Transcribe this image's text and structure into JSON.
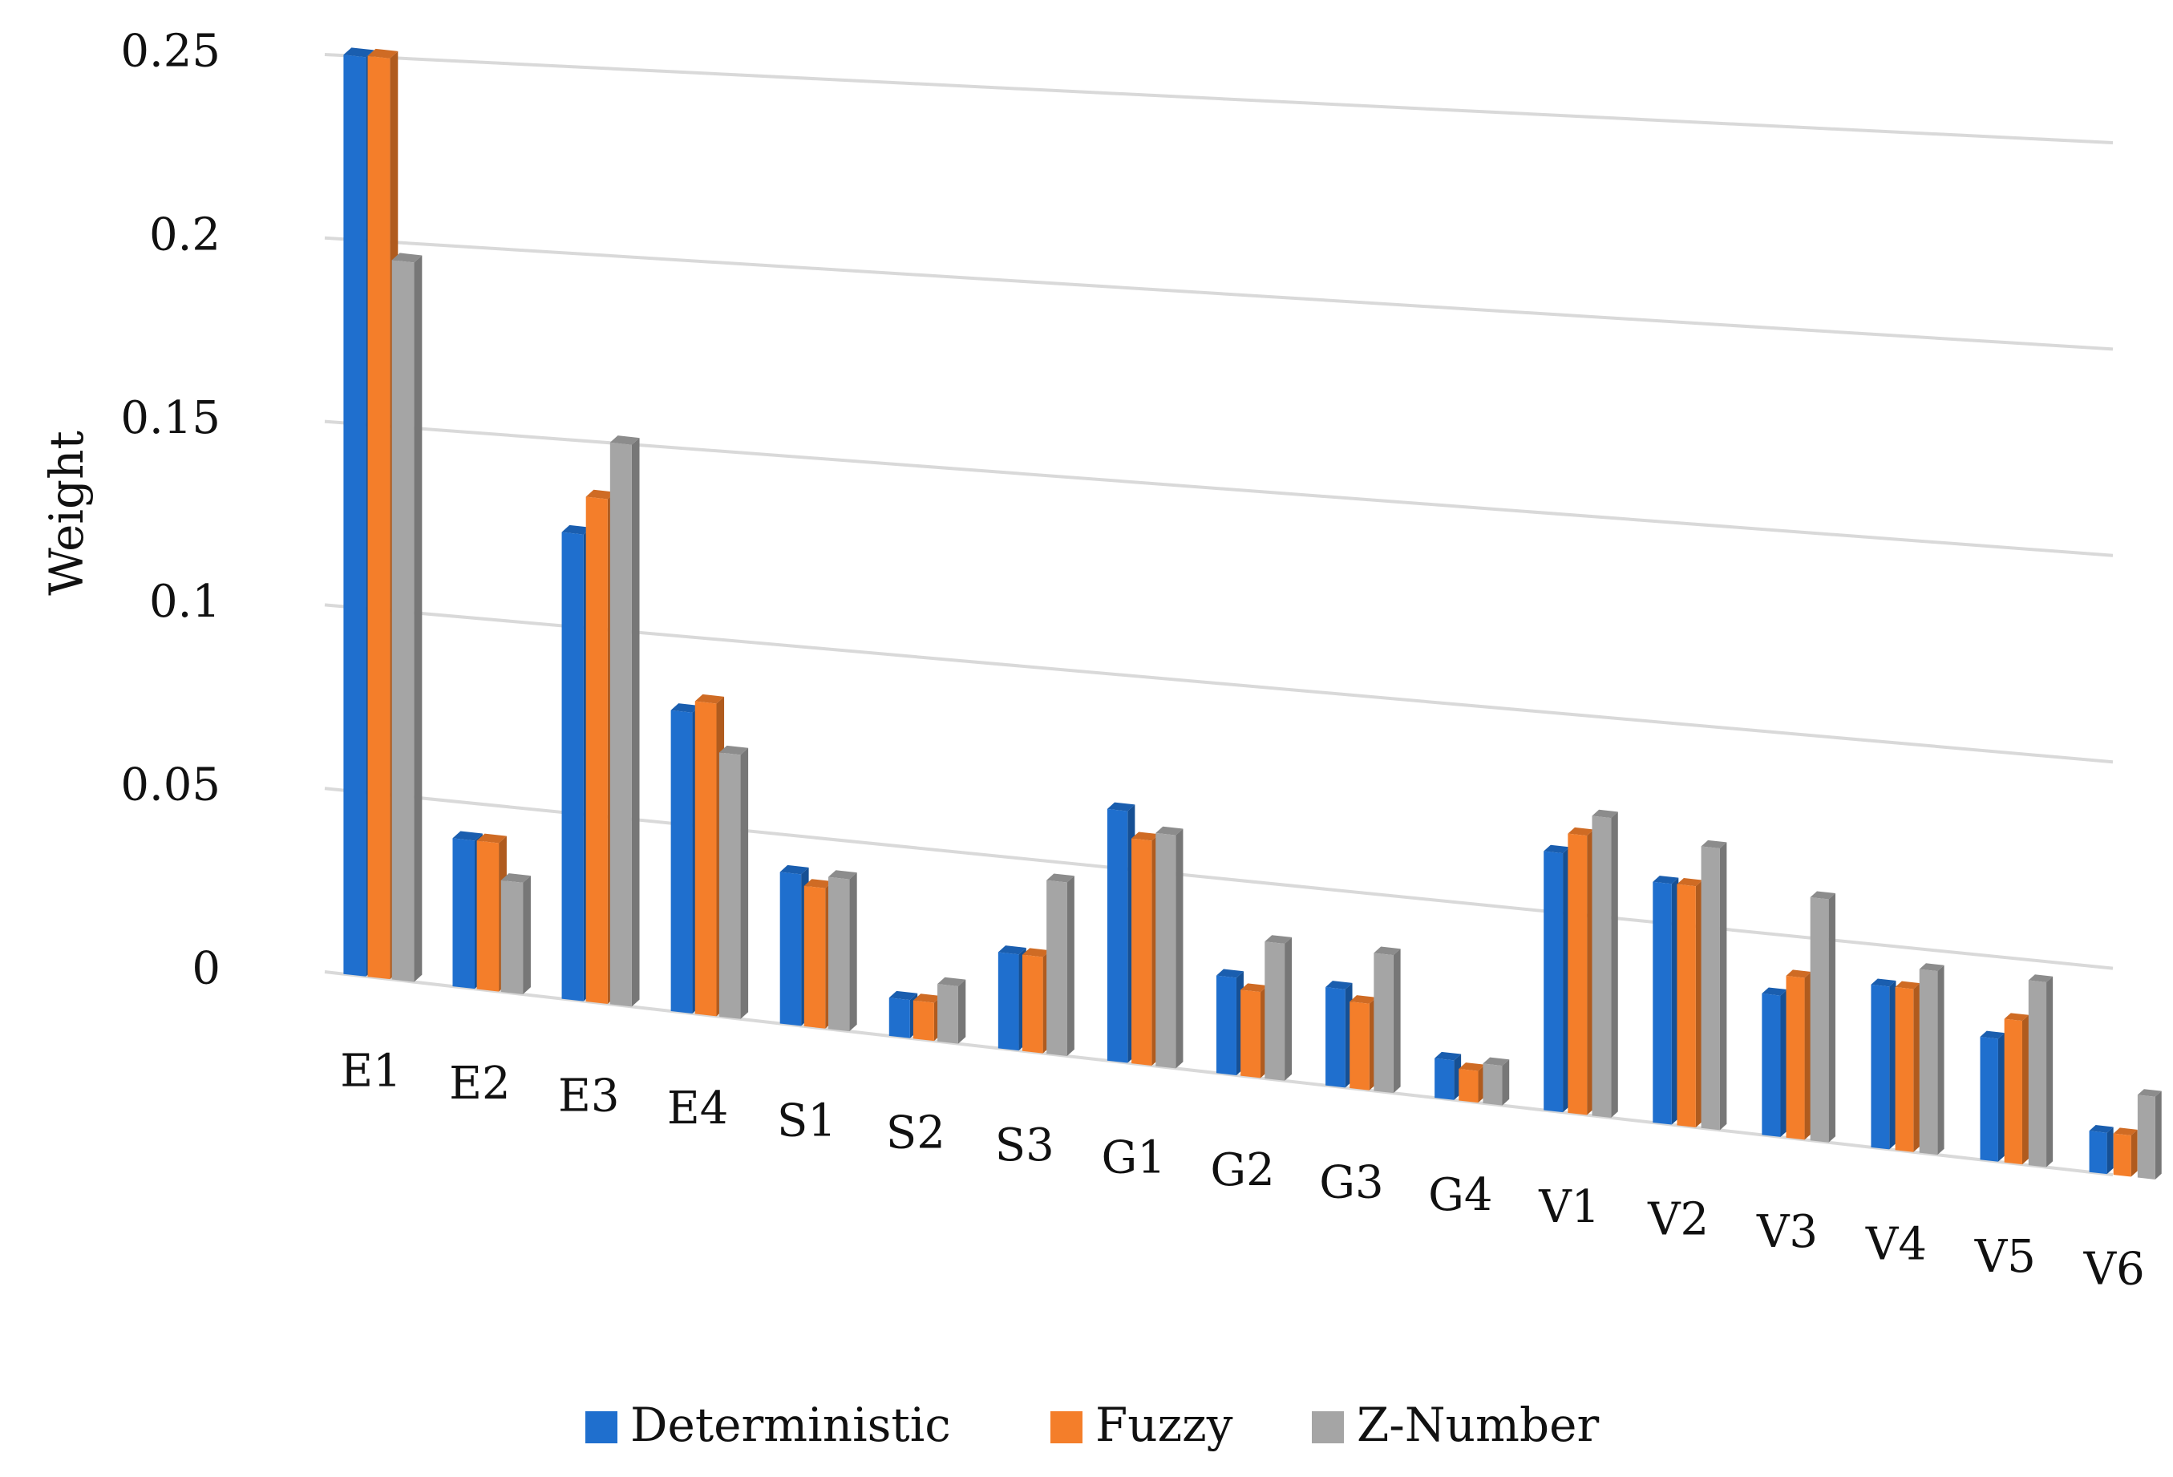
{
  "chart_data": {
    "type": "bar",
    "style": "3d-clustered-column",
    "title": "",
    "xlabel": "",
    "ylabel": "Weight",
    "ylim": [
      0,
      0.25
    ],
    "yticks": [
      "0",
      "0.05",
      "0.1",
      "0.15",
      "0.2",
      "0.25"
    ],
    "ytick_values": [
      0,
      0.05,
      0.1,
      0.15,
      0.2,
      0.25
    ],
    "grid": true,
    "legend_position": "bottom",
    "categories": [
      "E1",
      "E2",
      "E3",
      "E4",
      "S1",
      "S2",
      "S3",
      "G1",
      "G2",
      "G3",
      "G4",
      "V1",
      "V2",
      "V3",
      "V4",
      "V5",
      "V6"
    ],
    "series": [
      {
        "name": "Deterministic",
        "color": "#1f6fce",
        "values": [
          0.25,
          0.04,
          0.125,
          0.08,
          0.04,
          0.01,
          0.025,
          0.065,
          0.025,
          0.025,
          0.01,
          0.065,
          0.06,
          0.035,
          0.04,
          0.03,
          0.01
        ]
      },
      {
        "name": "Fuzzy",
        "color": "#f47e2a",
        "values": [
          0.25,
          0.04,
          0.135,
          0.083,
          0.037,
          0.01,
          0.025,
          0.058,
          0.022,
          0.022,
          0.008,
          0.07,
          0.06,
          0.04,
          0.04,
          0.035,
          0.01
        ]
      },
      {
        "name": "Z-Number",
        "color": "#a5a5a5",
        "values": [
          0.195,
          0.03,
          0.15,
          0.07,
          0.04,
          0.015,
          0.045,
          0.06,
          0.035,
          0.035,
          0.01,
          0.075,
          0.07,
          0.06,
          0.045,
          0.045,
          0.02
        ]
      }
    ]
  }
}
